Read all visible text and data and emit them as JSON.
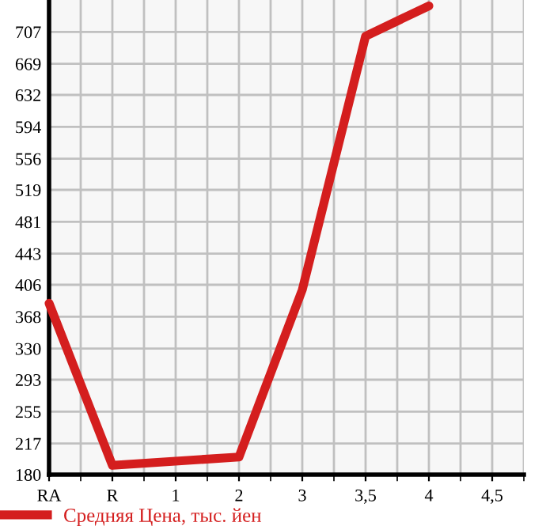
{
  "chart_data": {
    "type": "line",
    "categories": [
      "RA",
      "R",
      "1",
      "2",
      "3",
      "3,5",
      "4",
      "4,5"
    ],
    "series": [
      {
        "name": "Средняя Цена, тыс. йен",
        "color": "#d41e1e",
        "values": [
          384,
          191,
          null,
          201,
          400,
          702,
          738,
          null
        ]
      }
    ],
    "ylim": [
      180,
      745
    ],
    "yticks": [
      180,
      217,
      255,
      293,
      330,
      368,
      406,
      443,
      481,
      519,
      556,
      594,
      632,
      669,
      707
    ],
    "grid": true,
    "legend": "bottom left",
    "marker": "none",
    "line_style": "solid"
  }
}
